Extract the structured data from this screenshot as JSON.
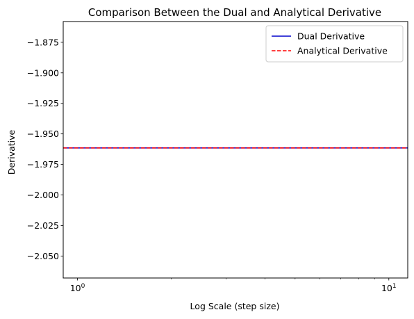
{
  "chart_data": {
    "type": "line",
    "title": "Comparison Between the Dual and Analytical Derivative",
    "xlabel": "Log Scale (step size)",
    "ylabel": "Derivative",
    "x_scale": "log",
    "xlim": [
      0.9,
      11.5
    ],
    "ylim": [
      -2.068,
      -1.858
    ],
    "x_major_ticks": [
      {
        "value": 1,
        "base": "10",
        "exponent": "0"
      },
      {
        "value": 10,
        "base": "10",
        "exponent": "1"
      }
    ],
    "x_minor_ticks": [
      2,
      3,
      4,
      5,
      6,
      7,
      8,
      9
    ],
    "y_ticks": [
      {
        "value": -1.875,
        "label": "−1.875"
      },
      {
        "value": -1.9,
        "label": "−1.900"
      },
      {
        "value": -1.925,
        "label": "−1.925"
      },
      {
        "value": -1.95,
        "label": "−1.950"
      },
      {
        "value": -1.975,
        "label": "−1.975"
      },
      {
        "value": -2.0,
        "label": "−2.000"
      },
      {
        "value": -2.025,
        "label": "−2.025"
      },
      {
        "value": -2.05,
        "label": "−2.050"
      }
    ],
    "grid": false,
    "legend_position": "top-right",
    "series": [
      {
        "name": "Dual Derivative",
        "color": "#0000cc",
        "style": "solid",
        "x": [
          0.9,
          11.5
        ],
        "y": [
          -1.9615,
          -1.9615
        ]
      },
      {
        "name": "Analytical Derivative",
        "color": "#ff0000",
        "style": "dashed",
        "x": [
          0.9,
          11.5
        ],
        "y": [
          -1.9615,
          -1.9615
        ]
      }
    ]
  }
}
